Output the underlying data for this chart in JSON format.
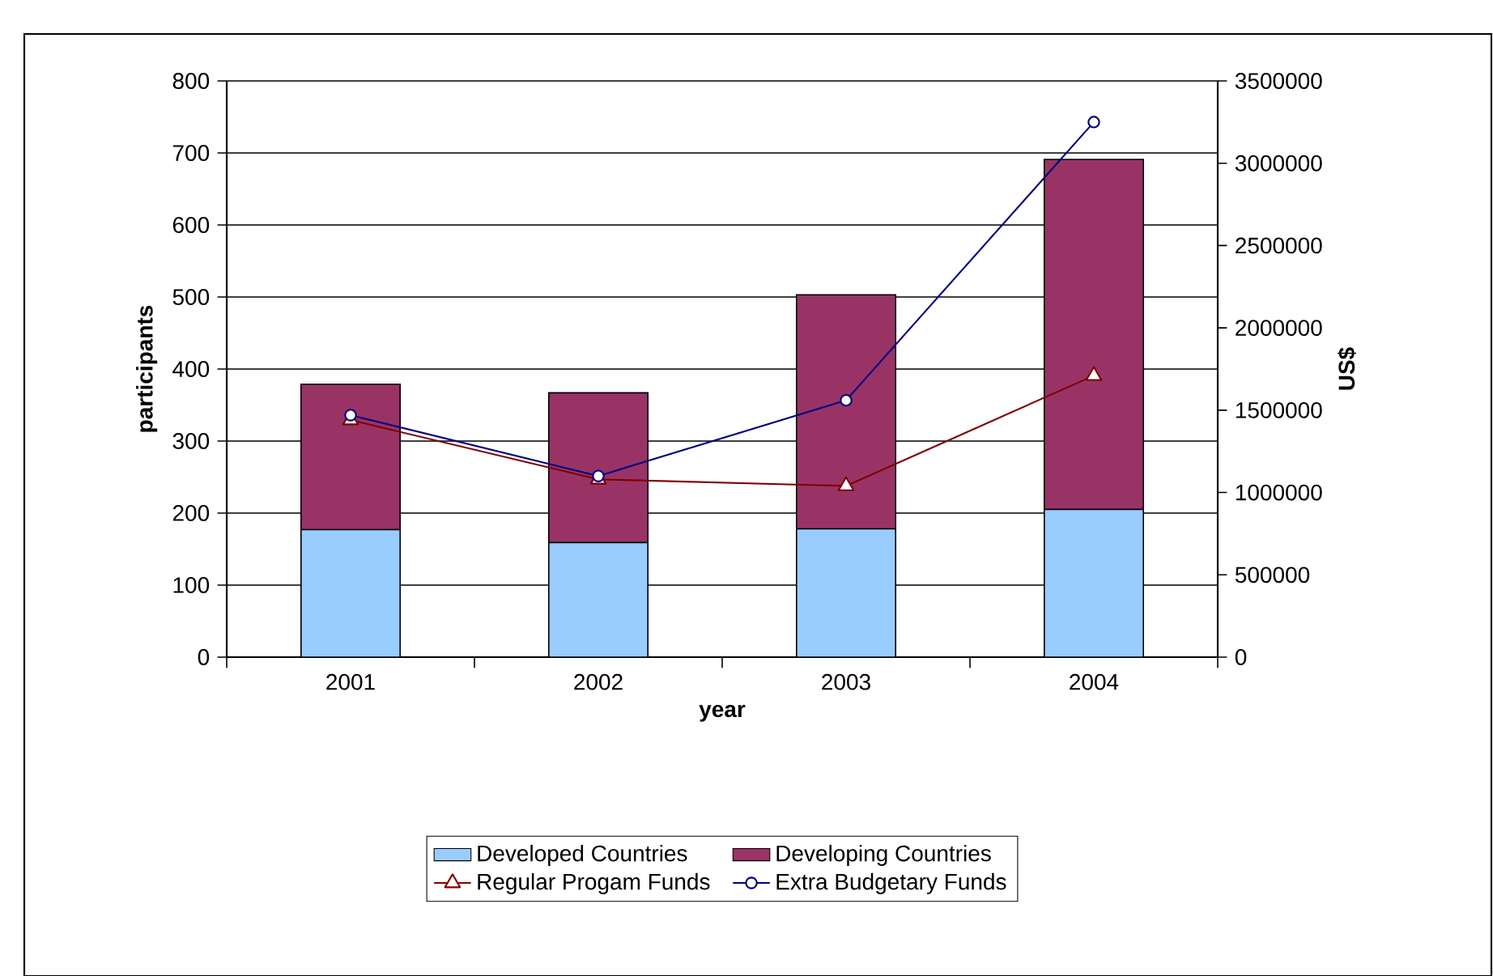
{
  "chart_data": {
    "type": "bar",
    "stacked": true,
    "xlabel": "year",
    "ylabel": "participants",
    "y2label": "US$",
    "categories": [
      "2001",
      "2002",
      "2003",
      "2004"
    ],
    "series": [
      {
        "name": "Developed Countries",
        "color": "#99ccff",
        "values": [
          177,
          159,
          178,
          205
        ]
      },
      {
        "name": "Developing Countries",
        "color": "#993366",
        "values": [
          202,
          208,
          325,
          486
        ]
      },
      {
        "name": "Regular Progam Funds",
        "type": "line",
        "axis": "y2",
        "marker": "triangle",
        "color": "#800000",
        "values": [
          1440000,
          1080000,
          1040000,
          1710000
        ]
      },
      {
        "name": "Extra Budgetary Funds",
        "type": "line",
        "axis": "y2",
        "marker": "circle",
        "color": "#000080",
        "values": [
          1470000,
          1100000,
          1560000,
          3250000
        ]
      }
    ],
    "ylim": [
      0,
      800
    ],
    "yticks": [
      0,
      100,
      200,
      300,
      400,
      500,
      600,
      700,
      800
    ],
    "y2lim": [
      0,
      3500000
    ],
    "y2ticks": [
      0,
      500000,
      1000000,
      1500000,
      2000000,
      2500000,
      3000000,
      3500000
    ],
    "grid": "y",
    "legend": "bottom"
  }
}
